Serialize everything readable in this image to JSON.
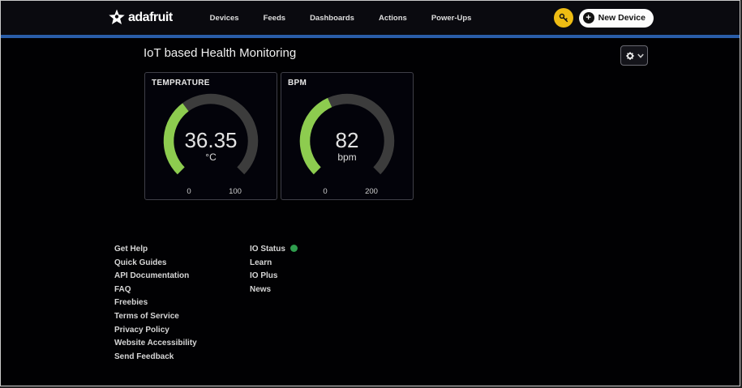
{
  "header": {
    "logo_text": "adafruit",
    "nav": [
      "Devices",
      "Feeds",
      "Dashboards",
      "Actions",
      "Power-Ups"
    ],
    "new_device_label": "New Device",
    "plus_glyph": "+"
  },
  "dashboard": {
    "title": "IoT based Health Monitoring"
  },
  "gauges": [
    {
      "title": "TEMPRATURE",
      "value": "36.35",
      "unit": "°C",
      "min_label": "0",
      "max_label": "100",
      "value_num": 36.35,
      "min": 0,
      "max": 100,
      "fill_color": "#8dcc4f"
    },
    {
      "title": "BPM",
      "value": "82",
      "unit": "bpm",
      "min_label": "0",
      "max_label": "200",
      "value_num": 82,
      "min": 0,
      "max": 200,
      "fill_color": "#8dcc4f"
    }
  ],
  "footer": {
    "left_links": [
      "Get Help",
      "Quick Guides",
      "API Documentation",
      "FAQ",
      "Freebies",
      "Terms of Service",
      "Privacy Policy",
      "Website Accessibility",
      "Send Feedback"
    ],
    "right_links": [
      "IO Status",
      "Learn",
      "IO Plus",
      "News"
    ]
  },
  "colors": {
    "accent_blue": "#2a5da8",
    "gauge_green": "#8dcc4f",
    "gauge_track": "#3c3c3c",
    "key_yellow": "#eebc13",
    "status_green": "#2f9e4e"
  }
}
